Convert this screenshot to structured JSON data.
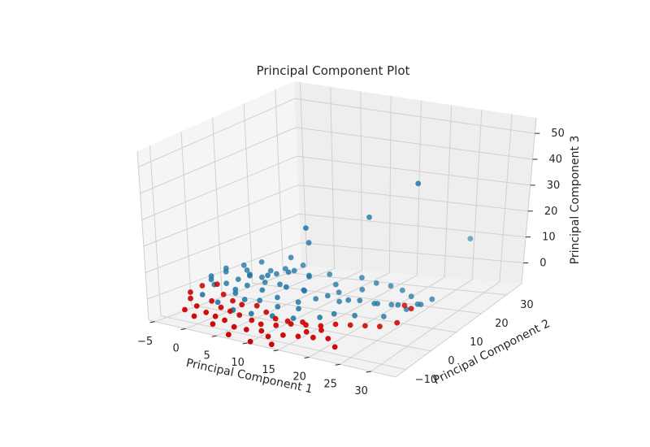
{
  "chart_data": {
    "type": "scatter",
    "projection": "3d",
    "title": "Principal Component Plot",
    "xlabel": "Principal Component 1",
    "ylabel": "Principal Component 2",
    "zlabel": "Principal Component 3",
    "x_ticks": [
      "−5",
      "0",
      "5",
      "10",
      "15",
      "20",
      "25",
      "30"
    ],
    "y_ticks": [
      "−10",
      "0",
      "10",
      "20",
      "30"
    ],
    "z_ticks": [
      "0",
      "10",
      "20",
      "30",
      "40",
      "50"
    ],
    "xlim": [
      -6,
      34
    ],
    "ylim": [
      -14,
      36
    ],
    "zlim": [
      -8,
      56
    ],
    "grid": true,
    "series": [
      {
        "color": "#1f77a4",
        "points": [
          [
            30,
            3,
            56
          ],
          [
            20,
            8,
            33
          ],
          [
            12,
            3,
            28
          ],
          [
            11,
            6,
            20
          ],
          [
            27,
            30,
            12
          ],
          [
            8,
            5,
            8
          ],
          [
            10,
            0,
            6
          ],
          [
            13,
            0,
            6
          ],
          [
            6,
            10,
            10
          ],
          [
            5,
            4,
            6
          ],
          [
            3,
            2,
            6
          ],
          [
            16,
            14,
            4
          ],
          [
            18,
            15,
            2
          ],
          [
            20,
            16,
            1
          ],
          [
            22,
            16,
            0
          ],
          [
            24,
            15,
            -1
          ],
          [
            26,
            13,
            -2
          ],
          [
            25,
            11,
            -3
          ],
          [
            22,
            12,
            -3
          ],
          [
            20,
            10,
            -2
          ],
          [
            18,
            9,
            -1
          ],
          [
            15,
            8,
            -2
          ],
          [
            14,
            10,
            0
          ],
          [
            12,
            6,
            -1
          ],
          [
            10,
            4,
            -2
          ],
          [
            9,
            8,
            0
          ],
          [
            7,
            3,
            -1
          ],
          [
            6,
            6,
            2
          ],
          [
            4,
            4,
            0
          ],
          [
            3,
            7,
            1
          ],
          [
            1,
            5,
            0
          ],
          [
            0,
            3,
            -1
          ],
          [
            2,
            8,
            2
          ],
          [
            -1,
            6,
            1
          ],
          [
            -2,
            4,
            0
          ],
          [
            -3,
            2,
            0
          ],
          [
            -4,
            3,
            1
          ],
          [
            -3,
            6,
            3
          ],
          [
            -1,
            9,
            3
          ],
          [
            1,
            1,
            -1
          ],
          [
            3,
            0,
            -2
          ],
          [
            5,
            1,
            -2
          ],
          [
            8,
            1,
            -3
          ],
          [
            11,
            2,
            -3
          ],
          [
            16,
            4,
            -4
          ],
          [
            19,
            5,
            -4
          ],
          [
            23,
            7,
            -4
          ],
          [
            17,
            12,
            1
          ],
          [
            13,
            11,
            2
          ],
          [
            11,
            13,
            4
          ],
          [
            8,
            12,
            3
          ],
          [
            6,
            14,
            5
          ],
          [
            4,
            12,
            4
          ],
          [
            2,
            11,
            3
          ],
          [
            0,
            12,
            5
          ],
          [
            -2,
            10,
            4
          ],
          [
            -4,
            8,
            3
          ],
          [
            -5,
            5,
            1
          ],
          [
            7,
            9,
            6
          ],
          [
            9,
            10,
            4
          ],
          [
            14,
            6,
            1
          ],
          [
            17,
            7,
            0
          ],
          [
            21,
            9,
            -1
          ],
          [
            24,
            10,
            -1
          ],
          [
            27,
            12,
            -1
          ],
          [
            28,
            14,
            0
          ],
          [
            12,
            -2,
            -4
          ],
          [
            9,
            -3,
            -4
          ],
          [
            6,
            -4,
            -4
          ],
          [
            3,
            -4,
            -4
          ],
          [
            0,
            -3,
            -3
          ],
          [
            -3,
            -2,
            -2
          ],
          [
            15,
            1,
            -4
          ],
          [
            2,
            4,
            5
          ],
          [
            5,
            7,
            5
          ]
        ]
      },
      {
        "color": "#cc0000",
        "points": [
          [
            -3,
            -8,
            -5
          ],
          [
            -2,
            -6,
            -4
          ],
          [
            0,
            -7,
            -5
          ],
          [
            2,
            -8,
            -5
          ],
          [
            4,
            -9,
            -5
          ],
          [
            6,
            -10,
            -6
          ],
          [
            8,
            -10,
            -6
          ],
          [
            10,
            -9,
            -6
          ],
          [
            12,
            -11,
            -6
          ],
          [
            14,
            -10,
            -5
          ],
          [
            16,
            -9,
            -5
          ],
          [
            18,
            -8,
            -5
          ],
          [
            20,
            -7,
            -5
          ],
          [
            22,
            -9,
            -6
          ],
          [
            -4,
            -4,
            -3
          ],
          [
            -5,
            -2,
            -2
          ],
          [
            -1,
            -3,
            -3
          ],
          [
            1,
            -4,
            -4
          ],
          [
            3,
            -5,
            -4
          ],
          [
            5,
            -6,
            -4
          ],
          [
            7,
            -6,
            -5
          ],
          [
            9,
            -7,
            -5
          ],
          [
            11,
            -6,
            -5
          ],
          [
            13,
            -5,
            -4
          ],
          [
            15,
            -4,
            -4
          ],
          [
            17,
            -3,
            -4
          ],
          [
            19,
            -2,
            -3
          ],
          [
            21,
            -1,
            -3
          ],
          [
            23,
            0,
            -3
          ],
          [
            25,
            1,
            -3
          ],
          [
            27,
            3,
            -2
          ],
          [
            28,
            6,
            2
          ],
          [
            26,
            8,
            1
          ],
          [
            -4,
            0,
            0
          ],
          [
            -2,
            1,
            1
          ],
          [
            0,
            -1,
            -1
          ],
          [
            2,
            -2,
            -2
          ],
          [
            4,
            -3,
            -2
          ],
          [
            6,
            -2,
            -2
          ],
          [
            8,
            -3,
            -3
          ],
          [
            10,
            -4,
            -4
          ],
          [
            12,
            -4,
            -4
          ],
          [
            14,
            -3,
            -4
          ],
          [
            16,
            -6,
            -5
          ],
          [
            18,
            -5,
            -4
          ],
          [
            6,
            -12,
            -8
          ],
          [
            10,
            -13,
            -8
          ],
          [
            13,
            -12,
            -8
          ],
          [
            -1,
            -9,
            -6
          ],
          [
            3,
            -11,
            -6
          ]
        ]
      }
    ]
  }
}
